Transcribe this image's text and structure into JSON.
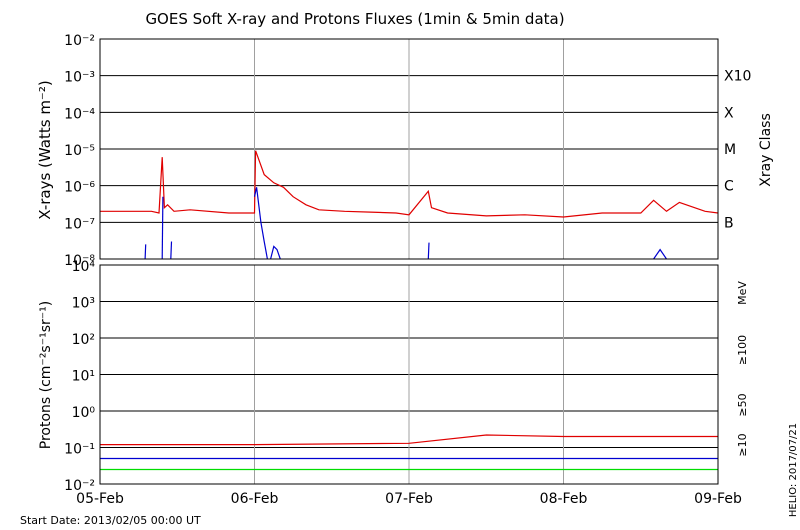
{
  "chart_data": [
    {
      "type": "line",
      "title": "GOES Soft X-ray and Protons Fluxes   (1min & 5min data)",
      "ylabel": "X-rays (Watts m⁻²)",
      "yscale": "log",
      "ylim": [
        1e-08,
        0.01
      ],
      "y_tick_labels": [
        "10⁻⁸",
        "10⁻⁷",
        "10⁻⁶",
        "10⁻⁵",
        "10⁻⁴",
        "10⁻³",
        "10⁻²"
      ],
      "xlim": [
        "2013-02-05",
        "2013-02-09"
      ],
      "x_tick_labels": [
        "05-Feb",
        "06-Feb",
        "07-Feb",
        "08-Feb",
        "09-Feb"
      ],
      "right_axis_label": "Xray Class",
      "class_labels": [
        {
          "label": "X10",
          "flux": 0.001
        },
        {
          "label": "X",
          "flux": 0.0001
        },
        {
          "label": "M",
          "flux": 1e-05
        },
        {
          "label": "C",
          "flux": 1e-06
        },
        {
          "label": "B",
          "flux": 1e-07
        }
      ],
      "series": [
        {
          "color": "#e00000",
          "x": [
            "2013-02-05 00:00",
            "2013-02-05 08:00",
            "2013-02-05 09:10",
            "2013-02-05 09:40",
            "2013-02-05 10:00",
            "2013-02-05 10:30",
            "2013-02-05 11:30",
            "2013-02-05 14:00",
            "2013-02-05 20:00",
            "2013-02-06 00:00",
            "2013-02-06 00:10",
            "2013-02-06 01:30",
            "2013-02-06 03:00",
            "2013-02-06 04:30",
            "2013-02-06 06:00",
            "2013-02-06 08:00",
            "2013-02-06 10:00",
            "2013-02-06 14:00",
            "2013-02-06 18:00",
            "2013-02-06 22:00",
            "2013-02-07 00:00",
            "2013-02-07 03:00",
            "2013-02-07 03:30",
            "2013-02-07 06:00",
            "2013-02-07 12:00",
            "2013-02-07 18:00",
            "2013-02-08 00:00",
            "2013-02-08 06:00",
            "2013-02-08 12:00",
            "2013-02-08 14:00",
            "2013-02-08 16:00",
            "2013-02-08 18:00",
            "2013-02-08 22:00",
            "2013-02-09 00:00"
          ],
          "y": [
            2e-07,
            2e-07,
            1.8e-07,
            6e-06,
            2.5e-07,
            3e-07,
            2e-07,
            2.2e-07,
            1.8e-07,
            1.8e-07,
            9e-06,
            2e-06,
            1.2e-06,
            9e-07,
            5e-07,
            3e-07,
            2.2e-07,
            2e-07,
            1.9e-07,
            1.8e-07,
            1.6e-07,
            7e-07,
            2.5e-07,
            1.8e-07,
            1.5e-07,
            1.6e-07,
            1.4e-07,
            1.8e-07,
            1.8e-07,
            4e-07,
            2e-07,
            3.5e-07,
            2e-07,
            1.8e-07
          ]
        },
        {
          "color": "#0000d0",
          "segments": [
            {
              "x": [
                "2013-02-05 07:00",
                "2013-02-05 07:06"
              ],
              "y": [
                1e-08,
                2.5e-08
              ]
            },
            {
              "x": [
                "2013-02-05 09:40",
                "2013-02-05 09:46"
              ],
              "y": [
                1e-08,
                5e-07
              ]
            },
            {
              "x": [
                "2013-02-05 11:00",
                "2013-02-05 11:06"
              ],
              "y": [
                1e-08,
                3e-08
              ]
            },
            {
              "x": [
                "2013-02-06 00:00",
                "2013-02-06 00:20",
                "2013-02-06 01:00",
                "2013-02-06 01:30",
                "2013-02-06 02:00"
              ],
              "y": [
                5e-07,
                9e-07,
                1e-07,
                3e-08,
                1e-08
              ]
            },
            {
              "x": [
                "2013-02-06 02:30",
                "2013-02-06 03:00",
                "2013-02-06 03:30",
                "2013-02-06 04:00"
              ],
              "y": [
                1e-08,
                2.2e-08,
                1.8e-08,
                1e-08
              ]
            },
            {
              "x": [
                "2013-02-07 03:00",
                "2013-02-07 03:06"
              ],
              "y": [
                1e-08,
                2.8e-08
              ]
            },
            {
              "x": [
                "2013-02-08 14:00",
                "2013-02-08 15:00",
                "2013-02-08 16:00"
              ],
              "y": [
                1e-08,
                1.8e-08,
                1e-08
              ]
            }
          ]
        }
      ]
    },
    {
      "type": "line",
      "ylabel": "Protons (cm⁻²s⁻¹sr⁻¹)",
      "yscale": "log",
      "ylim": [
        0.01,
        10000
      ],
      "y_tick_labels": [
        "10⁻²",
        "10⁻¹",
        "10⁰",
        "10¹",
        "10²",
        "10³",
        "10⁴"
      ],
      "xlim": [
        "2013-02-05",
        "2013-02-09"
      ],
      "x_tick_labels": [
        "05-Feb",
        "06-Feb",
        "07-Feb",
        "08-Feb",
        "09-Feb"
      ],
      "threshold": {
        "value": 10,
        "style": "dashed"
      },
      "right_axis_label": "MeV",
      "series": [
        {
          "name": "≥10",
          "color": "#e00000",
          "x": [
            "2013-02-05",
            "2013-02-06",
            "2013-02-07",
            "2013-02-07 12:00",
            "2013-02-08",
            "2013-02-09"
          ],
          "y": [
            0.12,
            0.12,
            0.13,
            0.22,
            0.2,
            0.2
          ]
        },
        {
          "name": "≥50",
          "color": "#0000d0",
          "x": [
            "2013-02-05",
            "2013-02-09"
          ],
          "y": [
            0.05,
            0.05
          ]
        },
        {
          "name": "≥100",
          "color": "#00dd00",
          "x": [
            "2013-02-05",
            "2013-02-09"
          ],
          "y": [
            0.025,
            0.025
          ]
        }
      ]
    }
  ],
  "footer": {
    "start_date": "Start Date: 2013/02/05 00:00 UT",
    "credit": "HELIO: 2017/07/21"
  }
}
